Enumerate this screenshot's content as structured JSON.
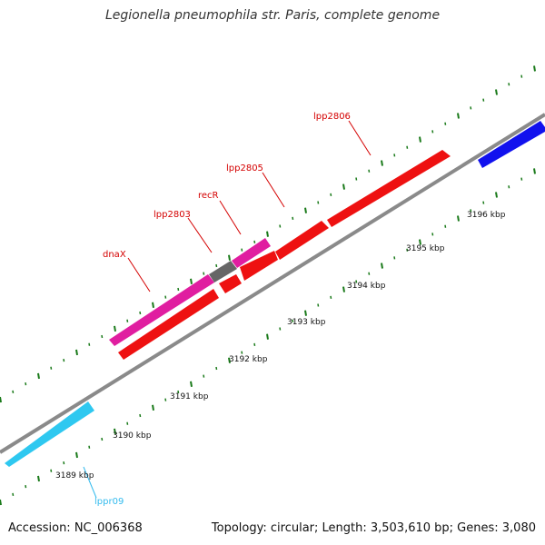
{
  "title": "Legionella pneumophila str. Paris, complete genome",
  "footer": {
    "accession": "Accession: NC_006368",
    "summary": "Topology: circular; Length: 3,503,610 bp; Genes: 3,080"
  },
  "ticks": [
    "3189 kbp",
    "3190 kbp",
    "3191 kbp",
    "3192 kbp",
    "3193 kbp",
    "3194 kbp",
    "3195 kbp",
    "3196 kbp"
  ],
  "genes": [
    {
      "id": "dnaX",
      "label": "dnaX",
      "color": "#d40000"
    },
    {
      "id": "lpp2803",
      "label": "lpp2803",
      "color": "#d40000"
    },
    {
      "id": "recR",
      "label": "recR",
      "color": "#d40000"
    },
    {
      "id": "lpp2805",
      "label": "lpp2805",
      "color": "#d40000"
    },
    {
      "id": "lpp2806",
      "label": "lpp2806",
      "color": "#d40000"
    },
    {
      "id": "lppr09",
      "label": "lppr09",
      "color": "#33bbee"
    }
  ],
  "colors": {
    "cds": "#ee1111",
    "cds_alt": "#e01ea0",
    "rna": "#2ec8f0",
    "gray_feature": "#666666",
    "blue_feature": "#1111ee",
    "backbone": "#8a8a8a",
    "gc_marks": "#1a7a1a"
  }
}
